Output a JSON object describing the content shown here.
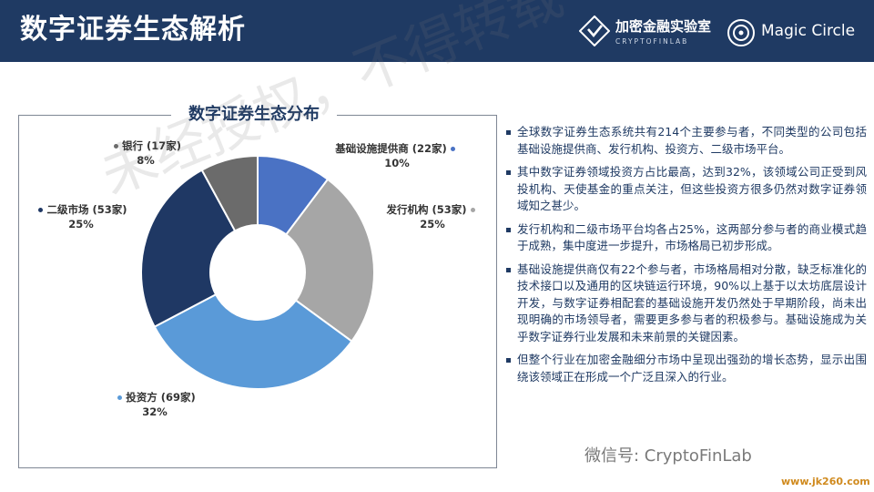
{
  "header": {
    "title": "数字证券生态解析",
    "brand1_cn": "加密金融实验室",
    "brand1_en": "CRYPTOFINLAB",
    "brand2": "Magic Circle"
  },
  "chart_data": {
    "type": "pie",
    "title": "数字证券生态分布",
    "slices": [
      {
        "label": "基础设施提供商 (22家)",
        "percent_label": "10%",
        "value": 22,
        "color": "#4a72c4"
      },
      {
        "label": "发行机构 (53家)",
        "percent_label": "25%",
        "value": 53,
        "color": "#a6a6a6"
      },
      {
        "label": "投资方 (69家)",
        "percent_label": "32%",
        "value": 69,
        "color": "#5a9ad8"
      },
      {
        "label": "二级市场 (53家)",
        "percent_label": "25%",
        "value": 53,
        "color": "#1f3864"
      },
      {
        "label": "银行 (17家)",
        "percent_label": "8%",
        "value": 17,
        "color": "#6b6b6b"
      }
    ]
  },
  "bullets": [
    "全球数字证券生态系统共有214个主要参与者，不同类型的公司包括基础设施提供商、发行机构、投资方、二级市场平台。",
    "其中数字证券领域投资方占比最高，达到32%，该领域公司正受到风投机构、天使基金的重点关注，但这些投资方很多仍然对数字证券领域知之甚少。",
    "发行机构和二级市场平台均各占25%，这两部分参与者的商业模式趋于成熟，集中度进一步提升，市场格局已初步形成。",
    "基础设施提供商仅有22个参与者，市场格局相对分散，缺乏标准化的技术接口以及通用的区块链运行环境，90%以上基于以太坊底层设计开发，与数字证券相配套的基础设施开发仍然处于早期阶段，尚未出现明确的市场领导者，需要更多参与者的积极参与。基础设施成为关乎数字证券行业发展和未来前景的关键因素。",
    "但整个行业在加密金融细分市场中呈现出强劲的增长态势，显示出围绕该领域正在形成一个广泛且深入的行业。"
  ],
  "watermark": "未经授权，不得转载",
  "footer": {
    "wechat": "微信号: CryptoFinLab",
    "site": "www.jk260.com"
  }
}
